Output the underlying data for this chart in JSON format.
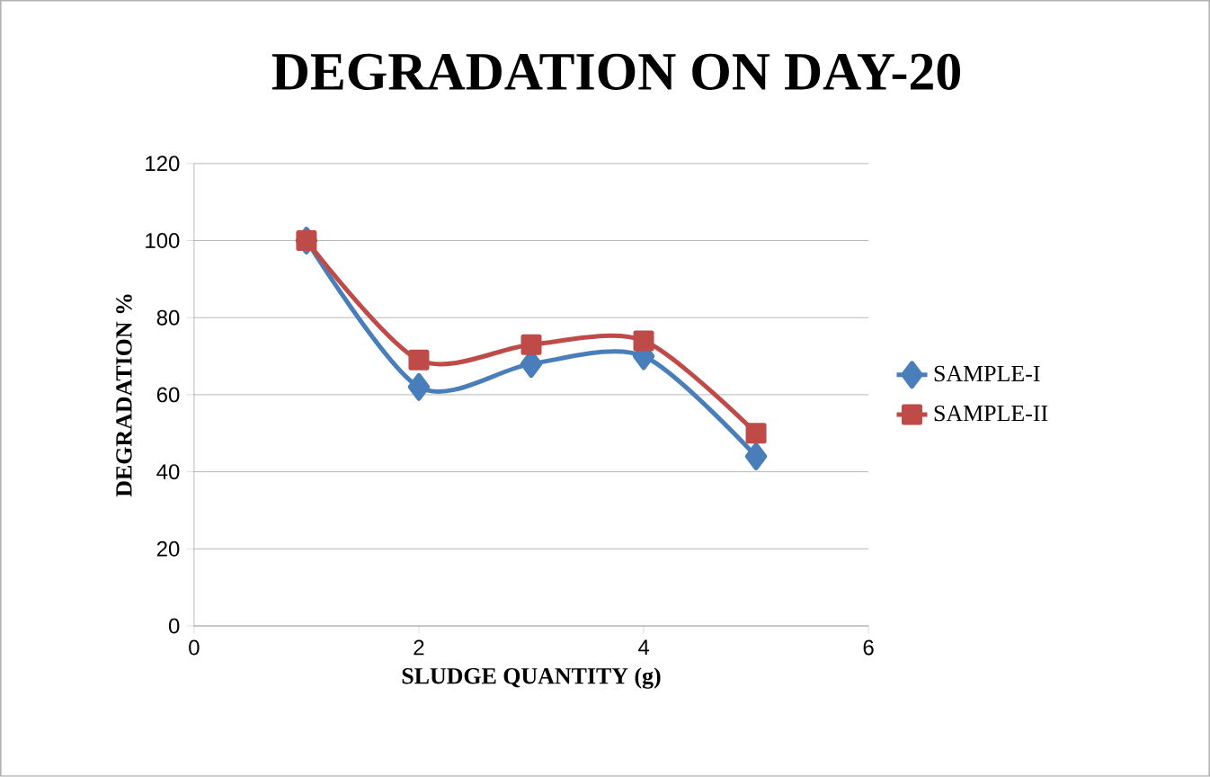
{
  "chart_data": {
    "type": "line",
    "title": "DEGRADATION ON DAY-20",
    "xlabel": "SLUDGE QUANTITY  (g)",
    "ylabel": "DEGRADATION  %",
    "x": [
      1,
      2,
      3,
      4,
      5
    ],
    "series": [
      {
        "name": "SAMPLE-I",
        "color": "#4a7ebb",
        "marker": "diamond",
        "values": [
          100,
          62,
          68,
          70,
          44
        ]
      },
      {
        "name": "SAMPLE-II",
        "color": "#be4b48",
        "marker": "square",
        "values": [
          100,
          69,
          73,
          74,
          50
        ]
      }
    ],
    "xlim": [
      0,
      6
    ],
    "ylim": [
      0,
      120
    ],
    "xticks": [
      0,
      2,
      4,
      6
    ],
    "yticks": [
      0,
      20,
      40,
      60,
      80,
      100,
      120
    ],
    "grid": "y",
    "legend": "right"
  }
}
